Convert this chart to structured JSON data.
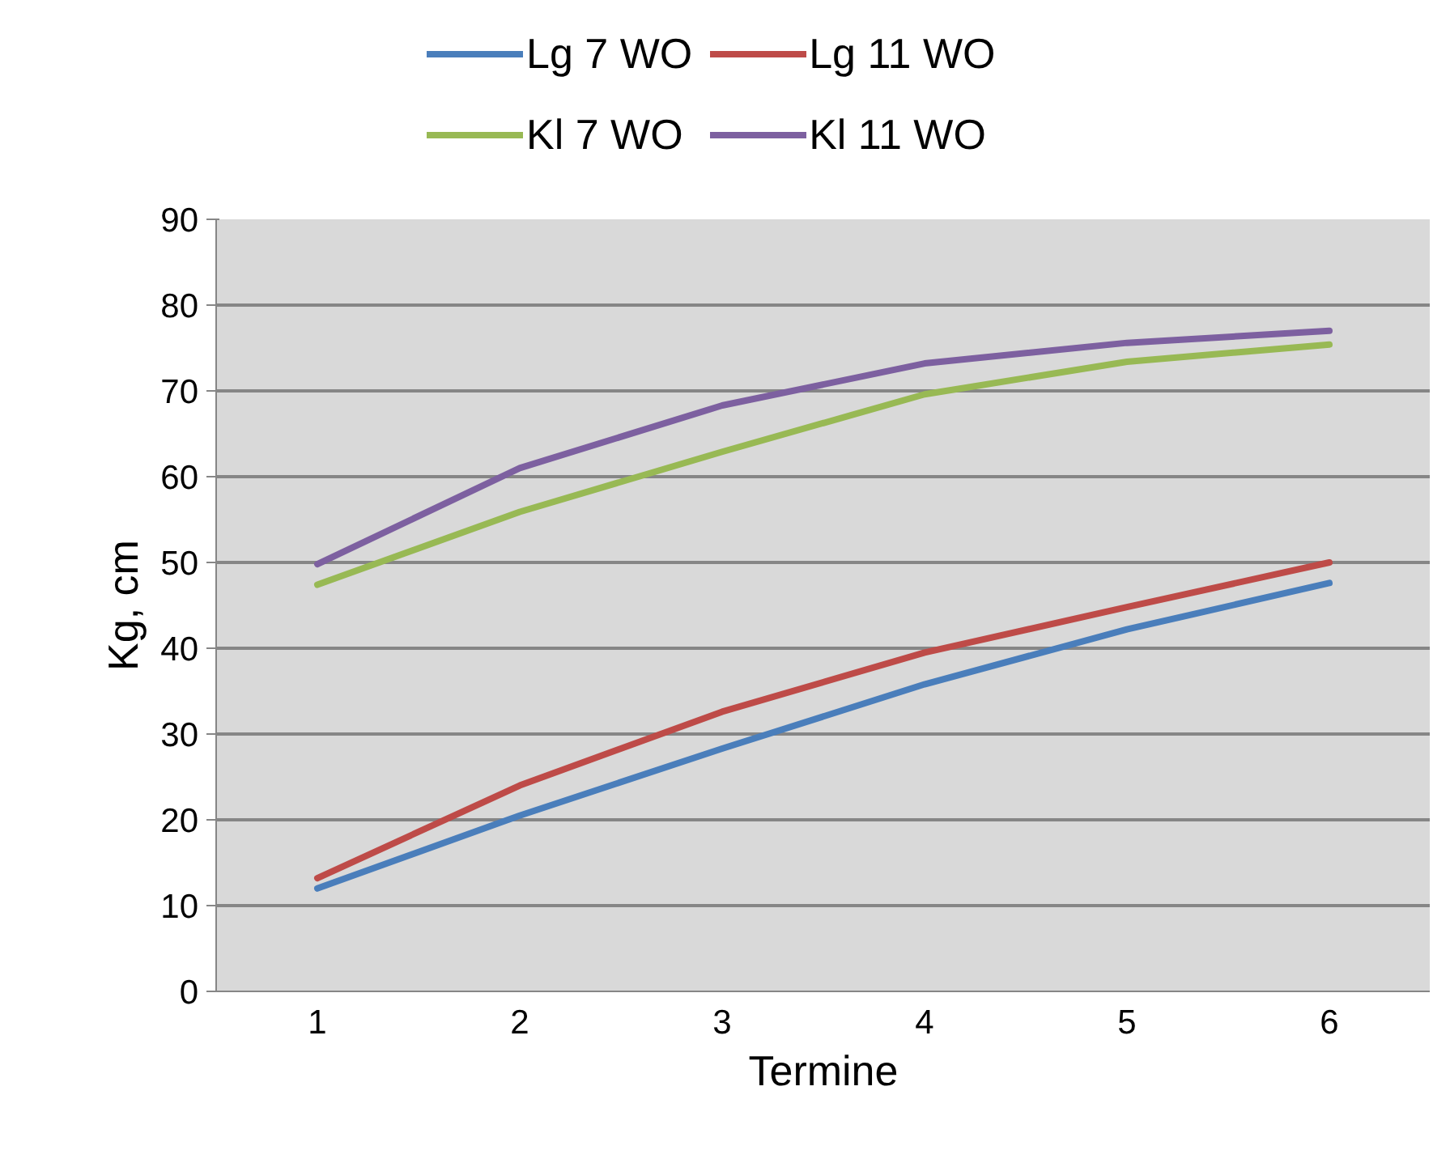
{
  "chart_data": {
    "type": "line",
    "xlabel": "Termine",
    "ylabel": "Kg, cm",
    "categories": [
      "1",
      "2",
      "3",
      "4",
      "5",
      "6"
    ],
    "series": [
      {
        "name": "Lg 7 WO",
        "color": "#4a7ebb",
        "values": [
          12,
          20.5,
          28.3,
          35.8,
          42.2,
          47.6
        ]
      },
      {
        "name": "Lg 11 WO",
        "color": "#be4b48",
        "values": [
          13.2,
          24,
          32.6,
          39.5,
          44.8,
          50
        ]
      },
      {
        "name": "Kl 7 WO",
        "color": "#98b954",
        "values": [
          47.4,
          55.9,
          62.9,
          69.6,
          73.4,
          75.4
        ]
      },
      {
        "name": "Kl 11 WO",
        "color": "#7d60a0",
        "values": [
          49.8,
          61,
          68.3,
          73.2,
          75.6,
          77
        ]
      }
    ],
    "ylim": [
      0,
      90
    ],
    "yticks": [
      0,
      10,
      20,
      30,
      40,
      50,
      60,
      70,
      80,
      90
    ],
    "grid": "y",
    "legend": "top",
    "marker": "none",
    "line_style": "solid"
  }
}
